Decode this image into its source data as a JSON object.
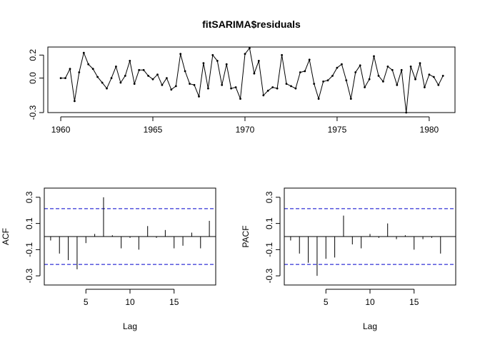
{
  "chart_data": [
    {
      "type": "line",
      "title": "fitSARIMA$residuals",
      "xlabel": "",
      "ylabel": "",
      "xlim": [
        1959.3,
        1981.4
      ],
      "ylim": [
        -0.3,
        0.27
      ],
      "xticks": [
        1960,
        1965,
        1970,
        1975,
        1980
      ],
      "yticks": [
        -0.3,
        0.0,
        0.2
      ],
      "ytick_labels": [
        "-0.3",
        "0.0",
        "0.2"
      ],
      "x_start": 1960,
      "x_step": 0.25,
      "values": [
        0.0,
        0.0,
        0.08,
        -0.2,
        0.05,
        0.22,
        0.12,
        0.08,
        0.01,
        -0.04,
        -0.09,
        0.0,
        0.1,
        -0.04,
        0.02,
        0.15,
        -0.05,
        0.07,
        0.07,
        0.02,
        -0.01,
        0.03,
        -0.06,
        0.0,
        -0.1,
        -0.07,
        0.21,
        0.06,
        -0.05,
        -0.06,
        -0.16,
        0.13,
        -0.09,
        0.2,
        0.15,
        -0.06,
        0.12,
        -0.09,
        -0.08,
        -0.18,
        0.21,
        0.26,
        0.04,
        0.15,
        -0.15,
        -0.11,
        -0.08,
        -0.09,
        0.2,
        -0.05,
        -0.07,
        -0.09,
        0.05,
        0.06,
        0.16,
        -0.05,
        -0.18,
        -0.03,
        -0.02,
        0.02,
        0.09,
        0.12,
        -0.02,
        -0.18,
        0.05,
        0.11,
        -0.08,
        -0.01,
        0.19,
        0.02,
        -0.03,
        0.1,
        0.07,
        -0.06,
        0.07,
        -0.3,
        0.1,
        -0.01,
        0.13,
        -0.08,
        0.03,
        0.01,
        -0.06,
        0.02
      ]
    },
    {
      "type": "bar",
      "title": "",
      "xlabel": "Lag",
      "ylabel": "ACF",
      "xlim": [
        0.28,
        19.72
      ],
      "ylim": [
        -0.37,
        0.37
      ],
      "xticks": [
        5,
        10,
        15
      ],
      "yticks": [
        -0.3,
        -0.1,
        0.1,
        0.3
      ],
      "ytick_labels": [
        "-0.3",
        "-0.1",
        "0.1",
        "0.3"
      ],
      "conf_limit": 0.213,
      "lags": [
        1,
        2,
        3,
        4,
        5,
        6,
        7,
        8,
        9,
        10,
        11,
        12,
        13,
        14,
        15,
        16,
        17,
        18,
        19
      ],
      "values": [
        -0.03,
        -0.13,
        -0.18,
        -0.25,
        -0.05,
        0.02,
        0.3,
        0.01,
        -0.09,
        -0.01,
        -0.1,
        0.08,
        -0.01,
        0.05,
        -0.09,
        -0.07,
        0.03,
        -0.09,
        0.12
      ]
    },
    {
      "type": "bar",
      "title": "",
      "xlabel": "Lag",
      "ylabel": "PACF",
      "xlim": [
        0.28,
        19.72
      ],
      "ylim": [
        -0.37,
        0.37
      ],
      "xticks": [
        5,
        10,
        15
      ],
      "yticks": [
        -0.3,
        -0.1,
        0.1,
        0.3
      ],
      "ytick_labels": [
        "-0.3",
        "-0.1",
        "0.1",
        "0.3"
      ],
      "conf_limit": 0.213,
      "lags": [
        1,
        2,
        3,
        4,
        5,
        6,
        7,
        8,
        9,
        10,
        11,
        12,
        13,
        14,
        15,
        16,
        17,
        18,
        19
      ],
      "values": [
        -0.03,
        -0.13,
        -0.2,
        -0.3,
        -0.17,
        -0.16,
        0.16,
        -0.06,
        -0.09,
        0.02,
        -0.01,
        0.1,
        -0.02,
        0.01,
        -0.1,
        -0.02,
        -0.01,
        -0.13,
        0.0
      ]
    }
  ]
}
